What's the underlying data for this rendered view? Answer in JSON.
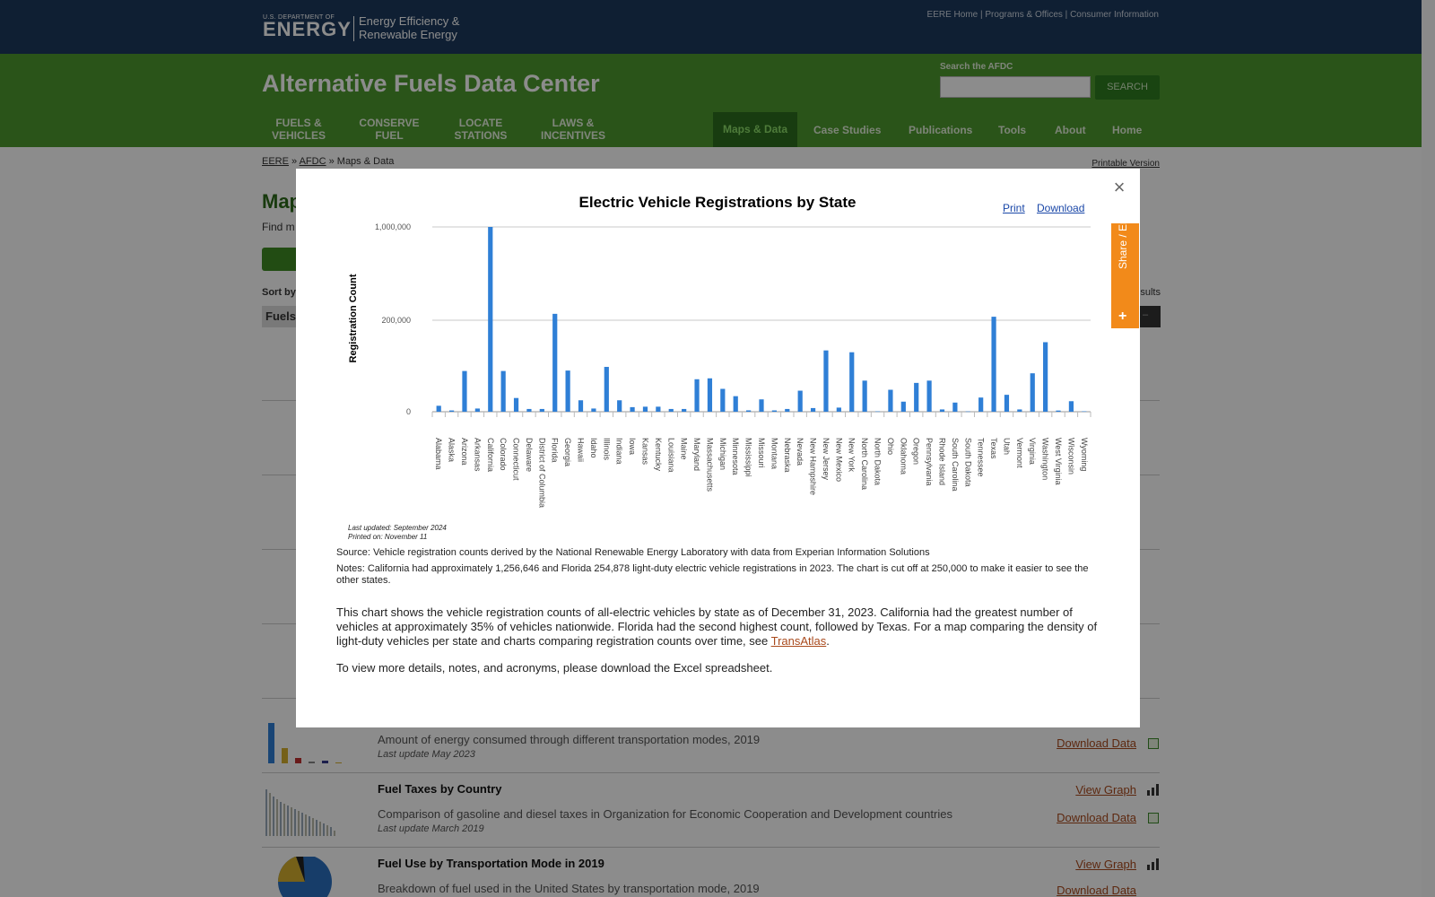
{
  "header": {
    "doe_small": "U.S. DEPARTMENT OF",
    "doe_big": "ENERGY",
    "eere_line1": "Energy Efficiency &",
    "eere_line2": "Renewable Energy",
    "util_links": [
      "EERE Home",
      "Programs & Offices",
      "Consumer Information"
    ],
    "site_title": "Alternative Fuels Data Center",
    "search_label": "Search the AFDC",
    "search_placeholder": "",
    "search_button": "SEARCH",
    "nav_left": [
      {
        "line1": "FUELS &",
        "line2": "VEHICLES"
      },
      {
        "line1": "CONSERVE",
        "line2": "FUEL"
      },
      {
        "line1": "LOCATE",
        "line2": "STATIONS"
      },
      {
        "line1": "LAWS &",
        "line2": "INCENTIVES"
      }
    ],
    "nav_right": [
      "Maps & Data",
      "Case Studies",
      "Publications",
      "Tools",
      "About",
      "Home"
    ]
  },
  "page": {
    "breadcrumb": [
      "EERE",
      "AFDC",
      "Maps & Data"
    ],
    "printable": "Printable Version",
    "h1_partial": "Map",
    "intro_partial": "Find m",
    "sort_by": "Sort by",
    "fuels_partial": "Fuels",
    "results_partial": "sults",
    "items": [
      {
        "desc": "Amount of energy consumed through different transportation modes, 2019",
        "date": "Last update May 2023",
        "download": "Download Data"
      },
      {
        "title": "Fuel Taxes by Country",
        "view": "View Graph",
        "desc": "Comparison of gasoline and diesel taxes in Organization for Economic Cooperation and Development countries",
        "date": "Last update March 2019",
        "download": "Download Data"
      },
      {
        "title": "Fuel Use by Transportation Mode in 2019",
        "view": "View Graph",
        "desc": "Breakdown of fuel used in the United States by transportation mode, 2019",
        "download": "Download Data"
      }
    ]
  },
  "modal": {
    "close": "×",
    "print": "Print",
    "download": "Download",
    "share": "Share / Embed",
    "share_plus": "+",
    "last_updated": "Last updated: September 2024",
    "printed_on": "Printed on: November 11",
    "source": "Source: Vehicle registration counts derived by the National Renewable Energy Laboratory with data from Experian Information Solutions",
    "notes": "Notes: California had approximately 1,256,646 and Florida 254,878 light-duty electric vehicle registrations in 2023. The chart is cut off at 250,000 to make it easier to see the other states.",
    "desc_before_link": "This chart shows the vehicle registration counts of all-electric vehicles by state as of December 31, 2023. California had the greatest number of vehicles at approximately 35% of vehicles nationwide. Florida had the second highest count, followed by Texas. For a map comparing the density of light-duty vehicles per state and charts comparing registration counts over time, see ",
    "desc_link": "TransAtlas",
    "desc_after_link": ".",
    "desc2": "To view more details, notes, and acronyms, please download the Excel spreadsheet."
  },
  "chart_data": {
    "type": "bar",
    "title": "Electric Vehicle Registrations by State",
    "xlabel": "",
    "ylabel": "Registration Count",
    "y_ticks": [
      "0",
      "200,000",
      "1,000,000"
    ],
    "axis_note": "broken y-axis: 0–200,000 linear in lower band, 200,000–1,000,000 compressed in upper band",
    "bar_color": "#2f7fd6",
    "categories": [
      "Alabama",
      "Alaska",
      "Arizona",
      "Arkansas",
      "California",
      "Colorado",
      "Connecticut",
      "Delaware",
      "District of Columbia",
      "Florida",
      "Georgia",
      "Hawaii",
      "Idaho",
      "Illinois",
      "Indiana",
      "Iowa",
      "Kansas",
      "Kentucky",
      "Louisiana",
      "Maine",
      "Maryland",
      "Massachusetts",
      "Michigan",
      "Minnesota",
      "Mississippi",
      "Missouri",
      "Montana",
      "Nebraska",
      "Nevada",
      "New Hampshire",
      "New Jersey",
      "New Mexico",
      "New York",
      "North Carolina",
      "North Dakota",
      "Ohio",
      "Oklahoma",
      "Oregon",
      "Pennsylvania",
      "Rhode Island",
      "South Carolina",
      "South Dakota",
      "Tennessee",
      "Texas",
      "Utah",
      "Vermont",
      "Virginia",
      "Washington",
      "West Virginia",
      "Wisconsin",
      "Wyoming"
    ],
    "values": [
      13000,
      2800,
      89000,
      7000,
      1256646,
      89000,
      30000,
      6000,
      6000,
      254878,
      90000,
      25000,
      7000,
      98000,
      25000,
      10000,
      11000,
      11000,
      6000,
      6000,
      71000,
      73000,
      50000,
      34000,
      3000,
      27000,
      2900,
      6000,
      46000,
      8000,
      134000,
      9000,
      130000,
      68000,
      800,
      48000,
      22000,
      63000,
      68000,
      5000,
      20000,
      700,
      31000,
      230000,
      37000,
      5000,
      84000,
      152000,
      2600,
      23000,
      900
    ]
  }
}
